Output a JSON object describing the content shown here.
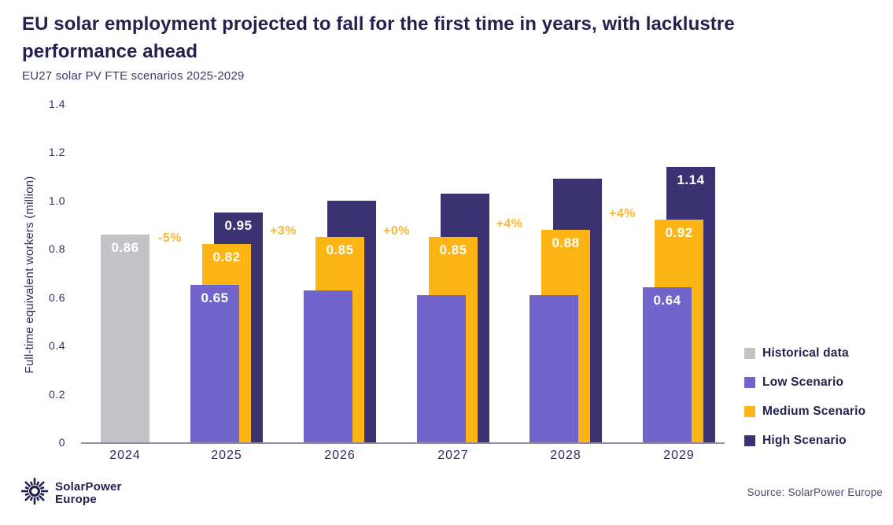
{
  "header": {
    "title_line1": "EU solar employment projected to fall for the first time in years, with lacklustre",
    "title_line2": "performance ahead",
    "subtitle": "EU27 solar PV FTE scenarios 2025-2029"
  },
  "chart_data": {
    "type": "bar",
    "title": "EU solar employment projected to fall for the first time in years, with lacklustre performance ahead",
    "subtitle": "EU27 solar PV FTE scenarios 2025-2029",
    "xlabel": "",
    "ylabel": "Full-time equivalent workers (million)",
    "ylim": [
      0,
      1.4
    ],
    "yticks": [
      "0",
      "0.2",
      "0.4",
      "0.6",
      "0.8",
      "1.0",
      "1.2",
      "1.4"
    ],
    "grid": false,
    "legend_position": "right",
    "categories": [
      "2024",
      "2025",
      "2026",
      "2027",
      "2028",
      "2029"
    ],
    "series": [
      {
        "name": "Historical data",
        "color": "#C3C2C6",
        "values": [
          0.86,
          null,
          null,
          null,
          null,
          null
        ],
        "labels": [
          "0.86",
          null,
          null,
          null,
          null,
          null
        ]
      },
      {
        "name": "Low Scenario",
        "color": "#7165CB",
        "values": [
          null,
          0.65,
          0.63,
          0.61,
          0.61,
          0.64
        ],
        "labels": [
          null,
          "0.65",
          null,
          null,
          null,
          "0.64"
        ]
      },
      {
        "name": "Medium Scenario",
        "color": "#FCB515",
        "values": [
          null,
          0.82,
          0.85,
          0.85,
          0.88,
          0.92
        ],
        "labels": [
          null,
          "0.82",
          "0.85",
          "0.85",
          "0.88",
          "0.92"
        ]
      },
      {
        "name": "High Scenario",
        "color": "#3B3271",
        "values": [
          null,
          0.95,
          1.0,
          1.03,
          1.09,
          1.14
        ],
        "labels": [
          null,
          "0.95",
          null,
          null,
          null,
          "1.14"
        ]
      }
    ],
    "annotations": [
      {
        "text": "-5%",
        "before_year": "2025"
      },
      {
        "text": "+3%",
        "before_year": "2026"
      },
      {
        "text": "+0%",
        "before_year": "2027"
      },
      {
        "text": "+4%",
        "before_year": "2028"
      },
      {
        "text": "+4%",
        "before_year": "2029"
      }
    ],
    "annotation_color": "#FBB832"
  },
  "footer": {
    "logo_line1": "SolarPower",
    "logo_line2": "Europe",
    "source": "Source: SolarPower Europe"
  },
  "colors": {
    "title": "#23224F",
    "axis_text": "#2E2E60",
    "axis_line": "#8C8C9C",
    "historical": "#C3C2C6",
    "low": "#7165CB",
    "medium": "#FCB515",
    "high": "#3B3271",
    "annotation": "#FBB832",
    "background": "#FFFFFF"
  }
}
